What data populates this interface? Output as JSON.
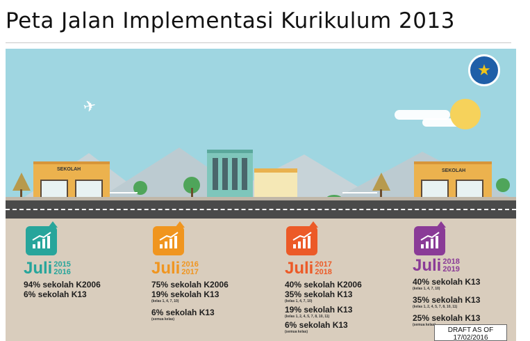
{
  "title": "Peta Jalan Implementasi Kurikulum 2013",
  "colors": {
    "c1": "#27a59b",
    "c2": "#f0951f",
    "c3": "#ec5a27",
    "c4": "#8a3b97"
  },
  "school_label": "SEKOLAH",
  "draft": "DRAFT AS OF 17/02/2016",
  "phases": [
    {
      "juli": "Juli",
      "y1": "2015",
      "y2": "2016",
      "lines": [
        {
          "text": "94% sekolah K2006",
          "sub": ""
        },
        {
          "text": "6% sekolah K13",
          "sub": ""
        }
      ]
    },
    {
      "juli": "Juli",
      "y1": "2016",
      "y2": "2017",
      "lines": [
        {
          "text": "75% sekolah K2006",
          "sub": ""
        },
        {
          "text": "19% sekolah K13",
          "sub": "(kelas 1, 4, 7, 10)"
        },
        {
          "text": "6% sekolah K13",
          "sub": "(semua kelas)"
        }
      ]
    },
    {
      "juli": "Juli",
      "y1": "2017",
      "y2": "2018",
      "lines": [
        {
          "text": "40% sekolah K2006",
          "sub": ""
        },
        {
          "text": "35% sekolah K13",
          "sub": "(kelas 1, 4, 7, 10)"
        },
        {
          "text": "19% sekolah K13",
          "sub": "(kelas 1, 2, 4, 5, 7, 8, 10, 11)"
        },
        {
          "text": "6% sekolah K13",
          "sub": "(semua kelas)"
        }
      ]
    },
    {
      "juli": "Juli",
      "y1": "2018",
      "y2": "2019",
      "lines": [
        {
          "text": "40% sekolah K13",
          "sub": "(kelas 1, 4, 7, 10)"
        },
        {
          "text": "35% sekolah K13",
          "sub": "(kelas 1, 2, 4, 5, 7, 8, 10, 11)"
        },
        {
          "text": "25% sekolah K13",
          "sub": "(semua kelas)"
        }
      ]
    }
  ]
}
